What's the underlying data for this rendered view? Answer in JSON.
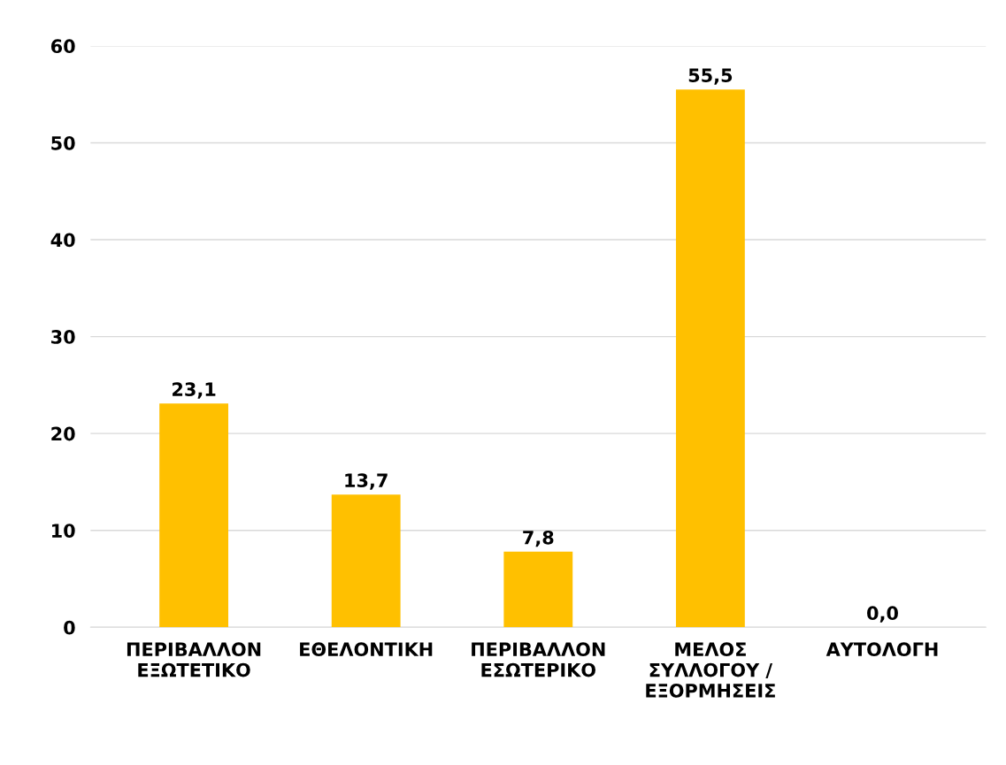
{
  "chart_data": {
    "type": "bar",
    "categories": [
      "ΠΕΡΙΒΑΛΛΟΝ\nΕΞΩΤΕΤΙΚΟ",
      "ΕΘΕΛΟΝΤΙΚΗ",
      "ΠΕΡΙΒΑΛΛΟΝ\nΕΣΩΤΕΡΙΚΟ",
      "ΜΕΛΟΣ\nΣΥΛΛΟΓΟΥ /\nΕΞΟΡΜΗΣΕΙΣ",
      "ΑΥΤΟΛΟΓΗ"
    ],
    "values": [
      23.1,
      13.7,
      7.8,
      55.5,
      0.0
    ],
    "value_labels": [
      "23,1",
      "13,7",
      "7,8",
      "55,5",
      "0,0"
    ],
    "color": "#ffc000",
    "ylim": [
      0,
      60
    ],
    "yticks": [
      0,
      10,
      20,
      30,
      40,
      50,
      60
    ],
    "grid": "y"
  }
}
